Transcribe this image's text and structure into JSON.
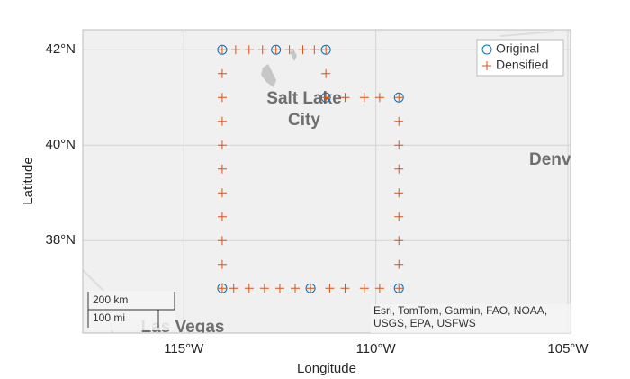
{
  "chart_data": {
    "type": "scatter",
    "xlabel": "Longitude",
    "ylabel": "Latitude",
    "xlim": [
      -117.63,
      -104.93
    ],
    "ylim": [
      36.06,
      42.42
    ],
    "xticks": [
      {
        "value": -115,
        "label": "115°W"
      },
      {
        "value": -110,
        "label": "110°W"
      },
      {
        "value": -105,
        "label": "105°W"
      }
    ],
    "yticks": [
      {
        "value": 38,
        "label": "38°N"
      },
      {
        "value": 40,
        "label": "40°N"
      },
      {
        "value": 42,
        "label": "42°N"
      }
    ],
    "grid": true,
    "legend": "upper right",
    "series": [
      {
        "name": "Original",
        "color": "#0072BD",
        "marker": "circle",
        "x": [
          -114,
          -112.6,
          -111.3,
          -111.3,
          -109.4,
          -109.4,
          -111.7,
          -114
        ],
        "y": [
          42,
          42,
          42,
          41,
          41,
          37,
          37,
          37
        ]
      },
      {
        "name": "Densified",
        "color": "#D95319",
        "marker": "plus",
        "x": [
          -114,
          -113.65,
          -113.3,
          -112.95,
          -112.6,
          -112.25,
          -111.9,
          -111.6,
          -111.3,
          -111.3,
          -111.3,
          -110.8,
          -110.3,
          -109.9,
          -109.4,
          -109.4,
          -109.4,
          -109.4,
          -109.4,
          -109.4,
          -109.4,
          -109.4,
          -109.4,
          -109.9,
          -110.3,
          -110.8,
          -111.2,
          -111.7,
          -112.1,
          -112.5,
          -112.9,
          -113.3,
          -113.7,
          -114,
          -114,
          -114,
          -114,
          -114,
          -114,
          -114,
          -114,
          -114,
          -114
        ],
        "y": [
          42,
          42,
          42,
          42,
          42,
          42,
          42,
          42,
          42,
          41.5,
          41,
          41,
          41,
          41,
          41,
          40.5,
          40,
          39.5,
          39,
          38.5,
          38,
          37.5,
          37,
          37,
          37,
          37,
          37,
          37,
          37,
          37,
          37,
          37,
          37,
          37,
          37.5,
          38,
          38.5,
          39,
          39.5,
          40,
          40.5,
          41,
          41.5
        ]
      }
    ],
    "map_labels": [
      "Salt Lake",
      "City",
      "Denv",
      "Las Vegas"
    ],
    "scale_bar": [
      "200 km",
      "100 mi"
    ],
    "attribution": [
      "Esri, TomTom, Garmin, FAO, NOAA,",
      "USGS, EPA, USFWS"
    ]
  }
}
